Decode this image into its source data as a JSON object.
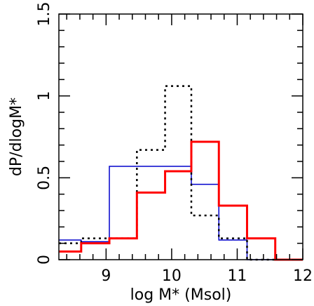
{
  "chart_data": {
    "type": "histogram-step",
    "xlabel": "log M* (Msol)",
    "ylabel": "dP/dlogM*",
    "xlim": [
      8.28,
      12.0
    ],
    "ylim": [
      0,
      1.5
    ],
    "x_ticks": [
      {
        "value": 9,
        "label": "9"
      },
      {
        "value": 10,
        "label": "10"
      },
      {
        "value": 11,
        "label": "11"
      },
      {
        "value": 12,
        "label": "12"
      }
    ],
    "y_ticks": [
      {
        "value": 0,
        "label": "0"
      },
      {
        "value": 0.5,
        "label": "0.5"
      },
      {
        "value": 1,
        "label": "1"
      },
      {
        "value": 1.5,
        "label": "1.5"
      }
    ],
    "x_minor_step": 0.2,
    "y_minor_step": 0.1,
    "grid": false,
    "legend": "none",
    "series": [
      {
        "color": "#0000cc",
        "style": "solid-thin",
        "bin_edges": [
          8.28,
          8.62,
          9.05,
          10.3,
          10.72,
          11.15,
          12.0
        ],
        "values": [
          0.12,
          0.11,
          0.57,
          0.46,
          0.12,
          0.0
        ]
      },
      {
        "color": "#000000",
        "style": "dotted",
        "bin_edges": [
          8.28,
          8.62,
          9.05,
          9.47,
          9.9,
          10.3,
          10.72,
          11.15,
          12.0
        ],
        "values": [
          0.1,
          0.13,
          0.13,
          0.67,
          1.06,
          0.27,
          0.13,
          0.0
        ]
      },
      {
        "color": "#ff0000",
        "style": "solid-thick",
        "bin_edges": [
          8.28,
          8.62,
          9.05,
          9.47,
          9.9,
          10.3,
          10.72,
          11.15,
          11.58,
          12.0
        ],
        "values": [
          0.05,
          0.1,
          0.13,
          0.41,
          0.54,
          0.72,
          0.33,
          0.13,
          0.0
        ]
      }
    ]
  }
}
